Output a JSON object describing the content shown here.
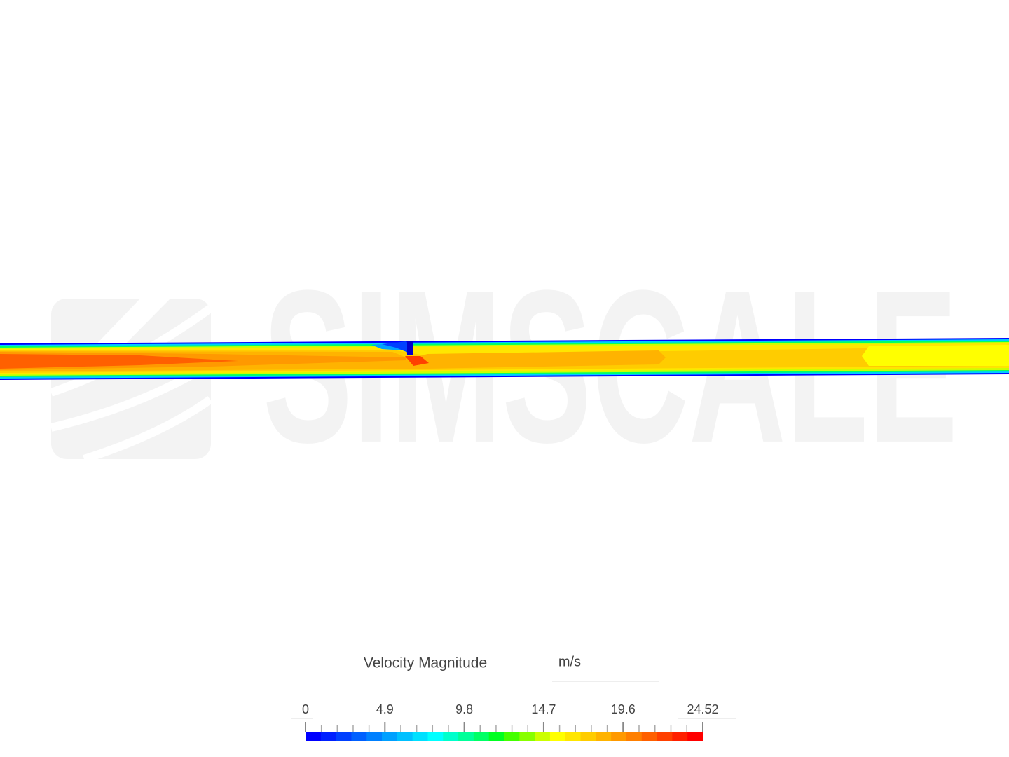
{
  "watermark": "SIMSCALE",
  "legend": {
    "title": "Velocity Magnitude",
    "unit": "m/s",
    "range": [
      0,
      24.52
    ],
    "ticks": [
      0,
      4.9,
      9.8,
      14.7,
      19.6,
      24.52
    ],
    "colors": [
      "#0000ff",
      "#0020ff",
      "#0040ff",
      "#0060ff",
      "#0080ff",
      "#00a0ff",
      "#00c0ff",
      "#00e0ff",
      "#00ffff",
      "#00ffcc",
      "#00ff99",
      "#00ff66",
      "#00ff22",
      "#44ff00",
      "#88ff00",
      "#ccff00",
      "#ffff00",
      "#ffe600",
      "#ffcc00",
      "#ffb300",
      "#ff9900",
      "#ff7f00",
      "#ff6000",
      "#ff4000",
      "#ff2000",
      "#ff0000"
    ]
  }
}
